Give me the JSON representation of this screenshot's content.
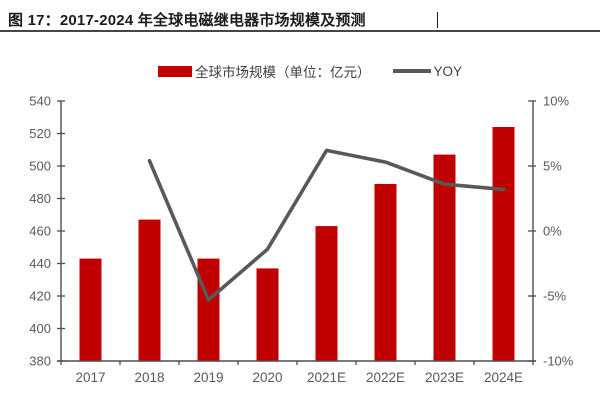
{
  "figure": {
    "title": "图 17：2017-2024 年全球电磁继电器市场规模及预测"
  },
  "legend": [
    {
      "label": "全球市场规模（单位：亿元）",
      "type": "bar",
      "color": "#C00000"
    },
    {
      "label": "YOY",
      "type": "line",
      "color": "#595959"
    }
  ],
  "colors": {
    "bar": "#C00000",
    "line": "#595959",
    "axis": "#4d4d4d",
    "axis_label": "#595959"
  },
  "chart_data": {
    "type": "bar",
    "subtype": "bar+line combo",
    "title": "2017-2024 年全球电磁继电器市场规模及预测",
    "categories": [
      "2017",
      "2018",
      "2019",
      "2020",
      "2021E",
      "2022E",
      "2023E",
      "2024E"
    ],
    "series": [
      {
        "name": "全球市场规模（单位：亿元）",
        "type": "bar",
        "axis": "left",
        "color": "#C00000",
        "values": [
          443,
          467,
          443,
          437,
          463,
          489,
          507,
          524
        ]
      },
      {
        "name": "YOY",
        "type": "line",
        "axis": "right",
        "color": "#595959",
        "unit": "%",
        "values": [
          null,
          5.4,
          -5.3,
          -1.4,
          6.2,
          5.3,
          3.6,
          3.2
        ]
      }
    ],
    "left_axis": {
      "min": 380,
      "max": 540,
      "ticks": [
        {
          "value": 380,
          "label": "380"
        },
        {
          "value": 400,
          "label": "400"
        },
        {
          "value": 420,
          "label": "420"
        },
        {
          "value": 440,
          "label": "440"
        },
        {
          "value": 460,
          "label": "460"
        },
        {
          "value": 480,
          "label": "480"
        },
        {
          "value": 500,
          "label": "500"
        },
        {
          "value": 520,
          "label": "520"
        },
        {
          "value": 540,
          "label": "540"
        }
      ]
    },
    "right_axis": {
      "min": -10,
      "max": 10,
      "ticks": [
        {
          "value": -10,
          "label": "-10%"
        },
        {
          "value": -5,
          "label": "-5%"
        },
        {
          "value": 0,
          "label": "0%"
        },
        {
          "value": 5,
          "label": "5%"
        },
        {
          "value": 10,
          "label": "10%"
        }
      ]
    },
    "grid": false,
    "legend_position": "top"
  }
}
